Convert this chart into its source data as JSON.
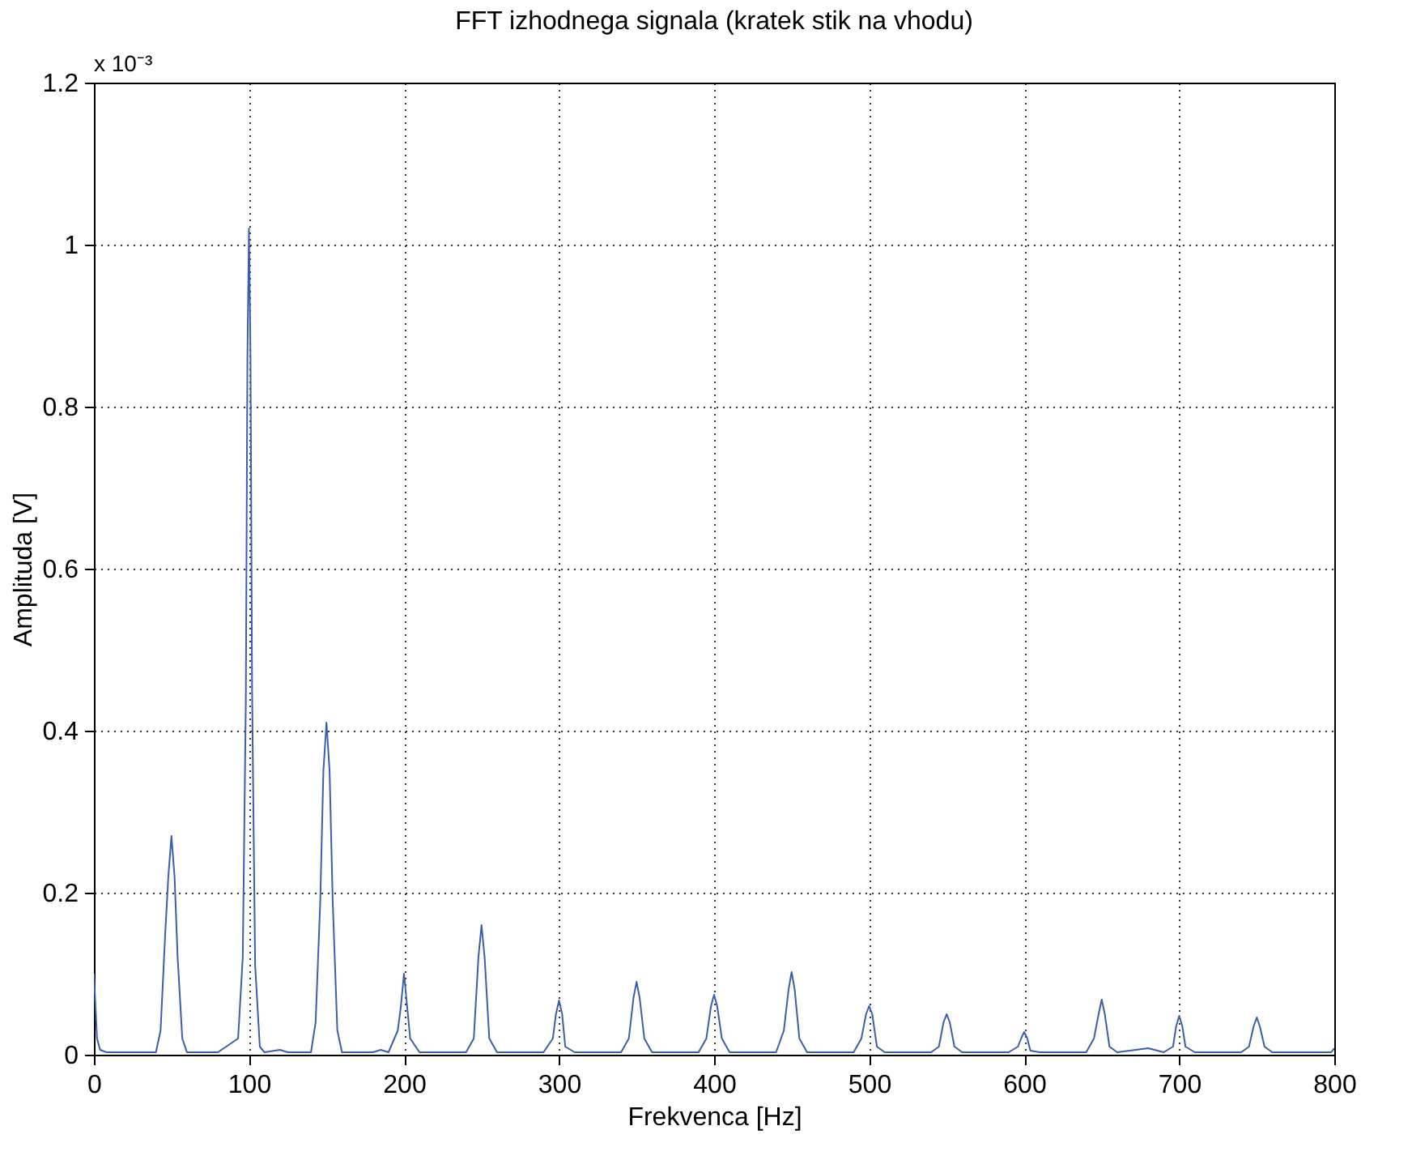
{
  "chart_data": {
    "type": "line",
    "title": "FFT izhodnega signala (kratek stik na vhodu)",
    "xlabel": "Frekvenca [Hz]",
    "ylabel": "Amplituda [V]",
    "annotations": [
      "x 10⁻³"
    ],
    "xlim": [
      0,
      800
    ],
    "ylim": [
      0,
      1.2
    ],
    "xticks": [
      0,
      100,
      200,
      300,
      400,
      500,
      600,
      700,
      800
    ],
    "yticks": [
      0,
      0.2,
      0.4,
      0.6,
      0.8,
      1,
      1.2
    ],
    "grid": true,
    "line_style": "solid",
    "series": [
      {
        "color": "#3a5fad",
        "x": [
          0,
          1,
          2,
          4,
          8,
          20,
          40,
          43,
          46,
          48,
          50,
          52,
          54,
          57,
          60,
          80,
          93,
          96,
          98,
          99,
          100,
          101,
          102,
          104,
          107,
          110,
          120,
          125,
          140,
          143,
          146,
          148,
          150,
          152,
          154,
          157,
          160,
          180,
          185,
          190,
          196,
          198,
          200,
          202,
          204,
          210,
          240,
          245,
          248,
          250,
          252,
          255,
          260,
          290,
          296,
          298,
          300,
          302,
          304,
          310,
          340,
          345,
          348,
          350,
          352,
          355,
          360,
          390,
          395,
          398,
          400,
          402,
          405,
          410,
          440,
          445,
          448,
          450,
          452,
          455,
          460,
          490,
          495,
          498,
          500,
          502,
          505,
          510,
          540,
          545,
          548,
          550,
          552,
          555,
          560,
          590,
          596,
          598,
          600,
          602,
          604,
          610,
          640,
          645,
          648,
          650,
          652,
          655,
          660,
          680,
          690,
          696,
          698,
          700,
          702,
          704,
          710,
          740,
          745,
          748,
          750,
          752,
          755,
          760,
          798,
          800
        ],
        "values": [
          0.1,
          0.06,
          0.02,
          0.006,
          0.003,
          0.003,
          0.003,
          0.03,
          0.15,
          0.22,
          0.27,
          0.22,
          0.12,
          0.02,
          0.003,
          0.003,
          0.02,
          0.12,
          0.44,
          0.86,
          1.02,
          0.86,
          0.45,
          0.11,
          0.01,
          0.003,
          0.006,
          0.003,
          0.003,
          0.04,
          0.19,
          0.35,
          0.41,
          0.35,
          0.19,
          0.03,
          0.003,
          0.003,
          0.006,
          0.003,
          0.03,
          0.06,
          0.1,
          0.06,
          0.02,
          0.003,
          0.003,
          0.02,
          0.12,
          0.16,
          0.12,
          0.02,
          0.003,
          0.003,
          0.02,
          0.05,
          0.067,
          0.05,
          0.01,
          0.003,
          0.003,
          0.02,
          0.07,
          0.09,
          0.07,
          0.02,
          0.003,
          0.003,
          0.02,
          0.06,
          0.074,
          0.06,
          0.02,
          0.003,
          0.003,
          0.03,
          0.08,
          0.102,
          0.08,
          0.02,
          0.003,
          0.003,
          0.02,
          0.05,
          0.06,
          0.05,
          0.01,
          0.003,
          0.003,
          0.01,
          0.04,
          0.05,
          0.04,
          0.01,
          0.003,
          0.003,
          0.01,
          0.02,
          0.028,
          0.02,
          0.005,
          0.003,
          0.003,
          0.02,
          0.05,
          0.068,
          0.05,
          0.01,
          0.003,
          0.008,
          0.003,
          0.01,
          0.035,
          0.048,
          0.035,
          0.01,
          0.003,
          0.003,
          0.01,
          0.035,
          0.046,
          0.035,
          0.01,
          0.003,
          0.003,
          0.008
        ]
      }
    ]
  }
}
